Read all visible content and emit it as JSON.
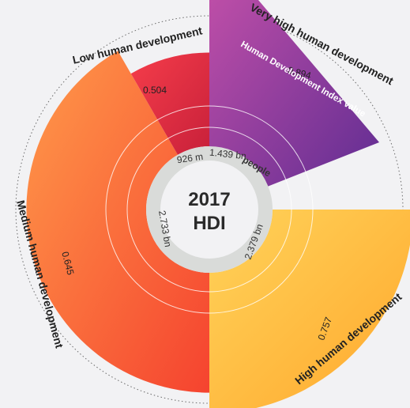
{
  "chart_data": {
    "type": "radial-bar",
    "center": {
      "line1": "2017",
      "line2": "HDI"
    },
    "caption": "Human Development Index value",
    "people_word": "people",
    "hdi_range": [
      0.0,
      1.0
    ],
    "categories": [
      {
        "key": "very_high",
        "name": "Very high human development",
        "hdi_label": "0.894",
        "hdi": 0.894,
        "population_label": "1.439 bn",
        "population_bn": 1.439,
        "colors": [
          "#c04fa8",
          "#5b2b91"
        ]
      },
      {
        "key": "high",
        "name": "High human development",
        "hdi_label": "0.757",
        "hdi": 0.757,
        "population_label": "2.379 bn",
        "population_bn": 2.379,
        "colors": [
          "#ffd35a",
          "#ffa72c"
        ]
      },
      {
        "key": "medium",
        "name": "Medium human development",
        "hdi_label": "0.645",
        "hdi": 0.645,
        "population_label": "2.733 bn",
        "population_bn": 2.733,
        "colors": [
          "#ff9a4a",
          "#f5432f"
        ]
      },
      {
        "key": "low",
        "name": "Low human development",
        "hdi_label": "0.504",
        "hdi": 0.504,
        "population_label": "926 m",
        "population_bn": 0.926,
        "colors": [
          "#f53d4a",
          "#c8203a"
        ]
      }
    ]
  }
}
